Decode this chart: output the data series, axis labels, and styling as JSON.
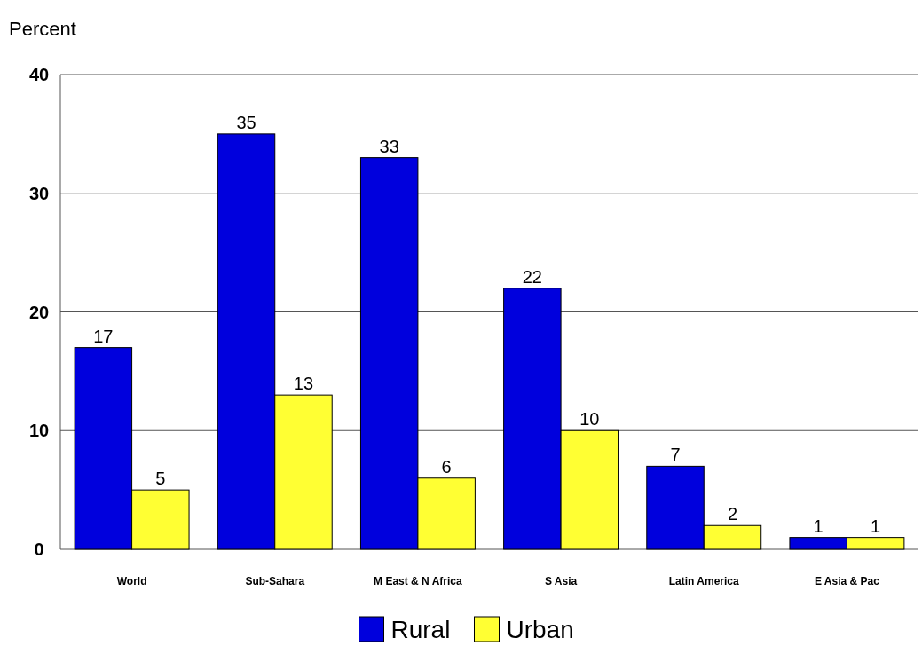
{
  "chart_data": {
    "type": "bar",
    "ylabel": "Percent",
    "categories": [
      "World",
      "Sub-Sahara",
      "M East & N Africa",
      "S Asia",
      "Latin America",
      "E Asia & Pac"
    ],
    "series": [
      {
        "name": "Rural",
        "color": "#0000dd",
        "values": [
          17,
          35,
          33,
          22,
          7,
          1
        ]
      },
      {
        "name": "Urban",
        "color": "#ffff33",
        "values": [
          5,
          13,
          6,
          10,
          2,
          1
        ]
      }
    ],
    "ylim": [
      0,
      40
    ],
    "yticks": [
      0,
      10,
      20,
      30,
      40
    ],
    "grid": "y",
    "data_labels": true,
    "legend": "bottom"
  }
}
